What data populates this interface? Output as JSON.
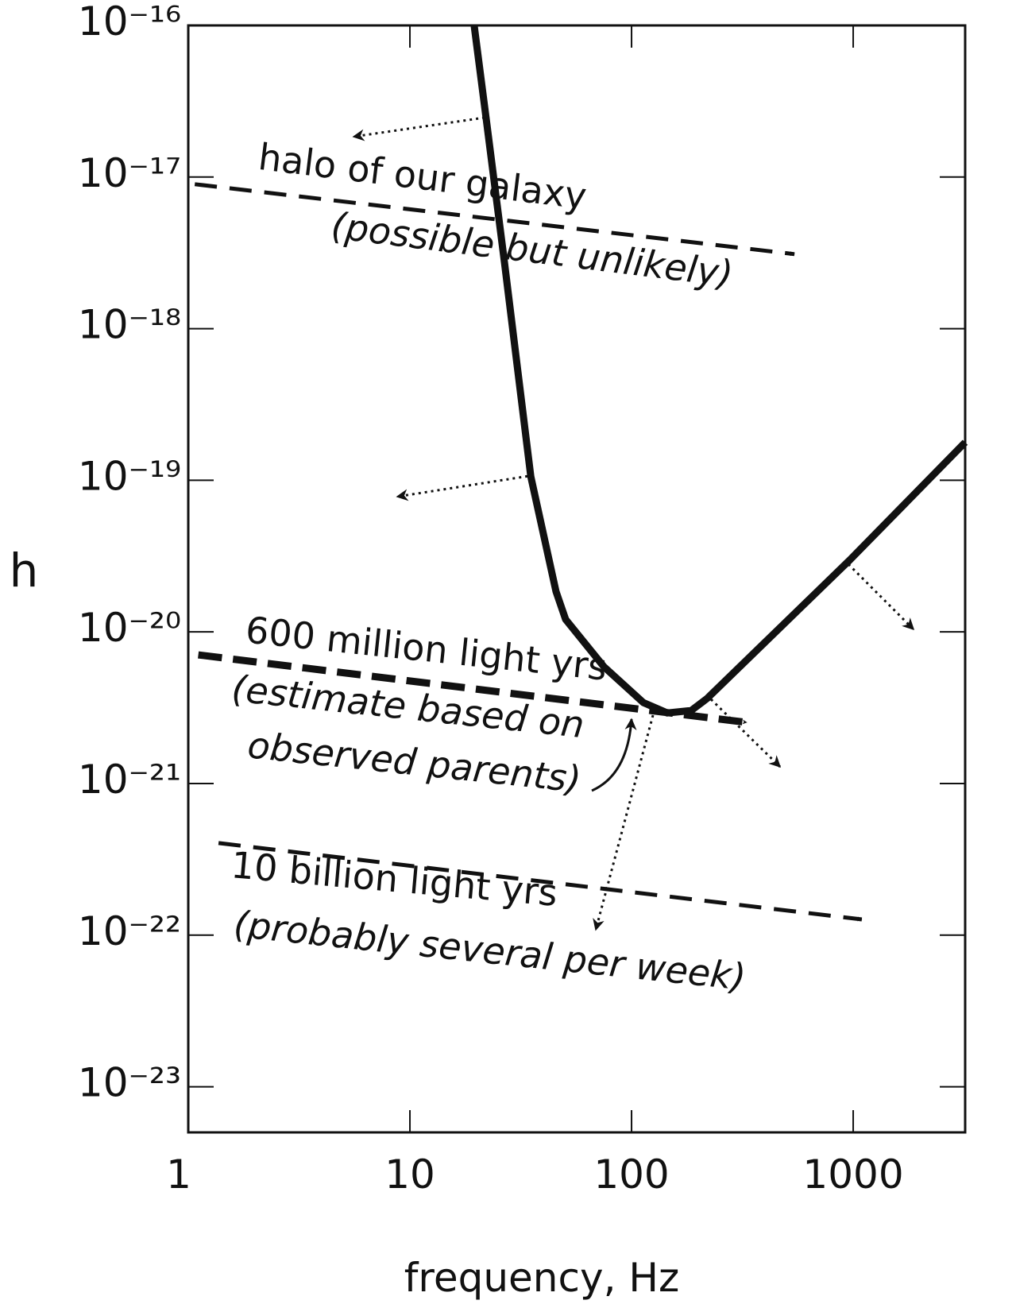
{
  "chart_data": {
    "type": "line",
    "xlabel": "frequency,  Hz",
    "ylabel": "h",
    "log_x": true,
    "log_y": true,
    "xlim": [
      1,
      3200
    ],
    "ylim": [
      5e-24,
      1e-16
    ],
    "xticks": [
      1,
      10,
      100,
      1000
    ],
    "yticks": [
      {
        "value": 1e-16,
        "label": "10⁻¹⁶"
      },
      {
        "value": 1e-17,
        "label": "10⁻¹⁷"
      },
      {
        "value": 1e-18,
        "label": "10⁻¹⁸"
      },
      {
        "value": 1e-19,
        "label": "10⁻¹⁹"
      },
      {
        "value": 1e-20,
        "label": "10⁻²⁰"
      },
      {
        "value": 1e-21,
        "label": "10⁻²¹"
      },
      {
        "value": 1e-22,
        "label": "10⁻²²"
      },
      {
        "value": 1e-23,
        "label": "10⁻²³"
      }
    ],
    "series": [
      {
        "color": "#111111",
        "width": 9,
        "dash": false,
        "x": [
          19.5,
          22.1,
          26.7,
          35.1,
          45.6,
          50.4,
          75,
          113,
          145,
          186,
          219,
          968,
          3200
        ],
        "values": [
          1e-16,
          2.41e-17,
          2.75e-18,
          1.06e-19,
          1.85e-20,
          1.21e-20,
          5.89e-21,
          3.42e-21,
          2.92e-21,
          3.03e-21,
          3.63e-21,
          2.99e-20,
          1.78e-19
        ]
      },
      {
        "color": "#111111",
        "width": 5,
        "dash": true,
        "x": [
          1.07,
          543
        ],
        "values": [
          8.97e-18,
          3.1e-18
        ]
      },
      {
        "color": "#111111",
        "width": 9,
        "dash": true,
        "x": [
          1.11,
          331
        ],
        "values": [
          7.05e-21,
          2.53e-21
        ]
      },
      {
        "color": "#111111",
        "width": 5,
        "dash": true,
        "x": [
          1.37,
          1094
        ],
        "values": [
          4.05e-22,
          1.27e-22
        ]
      }
    ],
    "annotations": [
      "halo of our galaxy",
      "(possible but unlikely)",
      "600 million light yrs",
      "(estimate based on",
      "observed parents)",
      "10 billion light yrs",
      "(probably several per week)"
    ]
  }
}
